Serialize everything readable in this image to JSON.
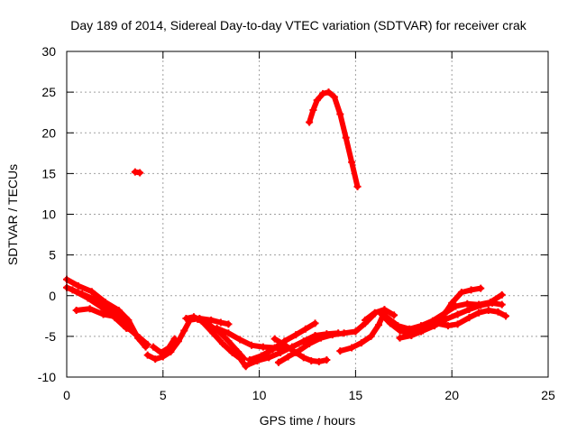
{
  "chart_data": {
    "type": "scatter",
    "title": "Day 189 of 2014, Sidereal Day-to-day VTEC variation (SDTVAR) for receiver crak",
    "xlabel": "GPS time / hours",
    "ylabel": "SDTVAR / TECUs",
    "xlim": [
      0,
      25
    ],
    "ylim": [
      -10,
      30
    ],
    "xticks": [
      0,
      5,
      10,
      15,
      20,
      25
    ],
    "yticks": [
      -10,
      -5,
      0,
      5,
      10,
      15,
      20,
      25,
      30
    ],
    "xtick_labels": [
      "0",
      "5",
      "10",
      "15",
      "20",
      "25"
    ],
    "ytick_labels": [
      "-10",
      "-5",
      "0",
      "5",
      "10",
      "15",
      "20",
      "25",
      "30"
    ],
    "grid": true,
    "legend": "none",
    "marker": "+",
    "color": "#ff0000",
    "series": [
      {
        "name": "track-1",
        "points": [
          [
            0,
            2.0
          ],
          [
            0.6,
            1.2
          ],
          [
            1.3,
            0.5
          ],
          [
            2.0,
            -0.8
          ],
          [
            2.7,
            -1.8
          ],
          [
            3.2,
            -3.0
          ],
          [
            3.7,
            -5.2
          ],
          [
            4.1,
            -6.3
          ]
        ]
      },
      {
        "name": "track-2",
        "points": [
          [
            0,
            1.0
          ],
          [
            0.8,
            0.2
          ],
          [
            1.6,
            -0.6
          ],
          [
            2.3,
            -1.7
          ],
          [
            3.0,
            -3.3
          ],
          [
            3.6,
            -4.8
          ],
          [
            4.0,
            -5.8
          ]
        ]
      },
      {
        "name": "track-3",
        "points": [
          [
            0.5,
            -1.8
          ],
          [
            1.2,
            -1.6
          ],
          [
            1.9,
            -2.3
          ],
          [
            2.6,
            -2.6
          ],
          [
            3.2,
            -4.0
          ],
          [
            3.8,
            -5.2
          ],
          [
            4.2,
            -6.0
          ]
        ]
      },
      {
        "name": "track-4",
        "points": [
          [
            0.3,
            0.7
          ],
          [
            1.1,
            -0.3
          ],
          [
            1.8,
            -1.4
          ],
          [
            2.5,
            -2.7
          ],
          [
            3.1,
            -4.0
          ]
        ]
      },
      {
        "name": "track-5",
        "points": [
          [
            3.55,
            15.2
          ],
          [
            3.8,
            15.1
          ]
        ]
      },
      {
        "name": "track-6",
        "points": [
          [
            4.2,
            -7.3
          ],
          [
            4.6,
            -7.8
          ],
          [
            5.0,
            -7.5
          ],
          [
            5.4,
            -6.9
          ],
          [
            5.8,
            -5.6
          ],
          [
            6.1,
            -4.3
          ],
          [
            6.4,
            -3.0
          ],
          [
            6.9,
            -2.8
          ],
          [
            7.5,
            -3.0
          ],
          [
            8.0,
            -3.3
          ],
          [
            8.4,
            -3.5
          ]
        ]
      },
      {
        "name": "track-7",
        "points": [
          [
            4.5,
            -6.3
          ],
          [
            4.9,
            -7.0
          ],
          [
            5.3,
            -6.4
          ],
          [
            5.6,
            -5.3
          ]
        ]
      },
      {
        "name": "track-8",
        "points": [
          [
            6.2,
            -2.8
          ],
          [
            6.6,
            -2.6
          ],
          [
            7.0,
            -3.1
          ],
          [
            7.6,
            -4.6
          ],
          [
            8.1,
            -5.9
          ],
          [
            8.6,
            -7.0
          ],
          [
            9.0,
            -7.7
          ],
          [
            9.3,
            -8.7
          ]
        ]
      },
      {
        "name": "track-9",
        "points": [
          [
            6.8,
            -2.9
          ],
          [
            7.4,
            -3.6
          ],
          [
            7.9,
            -4.4
          ],
          [
            8.4,
            -5.6
          ],
          [
            8.9,
            -6.9
          ],
          [
            9.2,
            -7.7
          ]
        ]
      },
      {
        "name": "track-10",
        "points": [
          [
            7.8,
            -4.0
          ],
          [
            8.4,
            -4.6
          ],
          [
            9.0,
            -5.4
          ],
          [
            9.6,
            -6.1
          ],
          [
            10.2,
            -6.3
          ],
          [
            10.8,
            -6.4
          ],
          [
            11.2,
            -6.6
          ]
        ]
      },
      {
        "name": "track-11",
        "points": [
          [
            9.3,
            -8.6
          ],
          [
            9.9,
            -8.0
          ],
          [
            10.5,
            -7.6
          ],
          [
            11.1,
            -7.0
          ],
          [
            11.7,
            -6.3
          ],
          [
            12.3,
            -5.6
          ],
          [
            12.9,
            -4.9
          ],
          [
            13.5,
            -4.7
          ],
          [
            14.1,
            -4.6
          ]
        ]
      },
      {
        "name": "track-12",
        "points": [
          [
            10.8,
            -5.3
          ],
          [
            11.4,
            -6.2
          ],
          [
            11.9,
            -7.0
          ],
          [
            12.3,
            -7.6
          ],
          [
            12.7,
            -8.0
          ],
          [
            13.1,
            -8.1
          ],
          [
            13.5,
            -7.9
          ]
        ]
      },
      {
        "name": "track-13",
        "points": [
          [
            9.5,
            -7.9
          ],
          [
            10.1,
            -7.4
          ],
          [
            10.7,
            -6.6
          ],
          [
            11.3,
            -5.6
          ],
          [
            11.9,
            -4.8
          ],
          [
            12.4,
            -4.1
          ],
          [
            12.9,
            -3.4
          ]
        ]
      },
      {
        "name": "track-14",
        "points": [
          [
            11.0,
            -8.2
          ],
          [
            11.5,
            -7.5
          ],
          [
            12.1,
            -6.7
          ],
          [
            12.6,
            -5.9
          ],
          [
            13.2,
            -5.2
          ],
          [
            13.8,
            -4.8
          ],
          [
            14.4,
            -4.6
          ],
          [
            15.0,
            -4.4
          ],
          [
            15.5,
            -3.4
          ],
          [
            16.0,
            -2.2
          ]
        ]
      },
      {
        "name": "track-15",
        "points": [
          [
            14.2,
            -6.8
          ],
          [
            14.8,
            -6.4
          ],
          [
            15.3,
            -5.8
          ],
          [
            15.8,
            -5.0
          ],
          [
            16.2,
            -3.6
          ],
          [
            16.5,
            -2.0
          ]
        ]
      },
      {
        "name": "track-16",
        "points": [
          [
            12.6,
            21.3
          ],
          [
            12.8,
            22.8
          ],
          [
            13.0,
            24.0
          ],
          [
            13.3,
            24.8
          ],
          [
            13.6,
            25.0
          ],
          [
            13.9,
            24.4
          ],
          [
            14.2,
            22.3
          ],
          [
            14.5,
            19.4
          ],
          [
            14.8,
            16.4
          ],
          [
            15.1,
            13.4
          ]
        ]
      },
      {
        "name": "track-17",
        "points": [
          [
            16.3,
            -2.2
          ],
          [
            16.8,
            -3.4
          ],
          [
            17.3,
            -4.3
          ],
          [
            17.8,
            -4.7
          ],
          [
            18.4,
            -4.4
          ],
          [
            19.0,
            -3.6
          ],
          [
            19.6,
            -2.3
          ],
          [
            20.0,
            -0.9
          ],
          [
            20.5,
            0.4
          ],
          [
            21.0,
            0.7
          ],
          [
            21.5,
            0.9
          ]
        ]
      },
      {
        "name": "track-18",
        "points": [
          [
            16.6,
            -2.6
          ],
          [
            17.2,
            -3.7
          ],
          [
            17.8,
            -4.1
          ],
          [
            18.4,
            -3.7
          ],
          [
            19.0,
            -3.1
          ],
          [
            19.6,
            -2.2
          ],
          [
            20.2,
            -1.3
          ],
          [
            20.8,
            -1.0
          ],
          [
            21.4,
            -1.1
          ],
          [
            22.0,
            -0.8
          ],
          [
            22.6,
            0.1
          ]
        ]
      },
      {
        "name": "track-19",
        "points": [
          [
            17.3,
            -5.2
          ],
          [
            17.9,
            -4.9
          ],
          [
            18.5,
            -4.3
          ],
          [
            19.1,
            -3.7
          ],
          [
            19.7,
            -2.9
          ],
          [
            20.3,
            -2.3
          ],
          [
            20.9,
            -1.7
          ],
          [
            21.5,
            -1.2
          ],
          [
            22.1,
            -0.9
          ],
          [
            22.6,
            -1.1
          ]
        ]
      },
      {
        "name": "track-20",
        "points": [
          [
            18.0,
            -4.4
          ],
          [
            18.6,
            -4.0
          ],
          [
            19.2,
            -3.4
          ],
          [
            19.8,
            -3.7
          ],
          [
            20.3,
            -3.5
          ],
          [
            20.9,
            -2.7
          ],
          [
            21.4,
            -2.1
          ],
          [
            21.9,
            -1.8
          ],
          [
            22.4,
            -2.0
          ],
          [
            22.8,
            -2.5
          ]
        ]
      },
      {
        "name": "track-21",
        "points": [
          [
            15.5,
            -3.0
          ],
          [
            16.0,
            -2.1
          ],
          [
            16.5,
            -1.7
          ],
          [
            17.0,
            -2.4
          ]
        ]
      }
    ]
  }
}
